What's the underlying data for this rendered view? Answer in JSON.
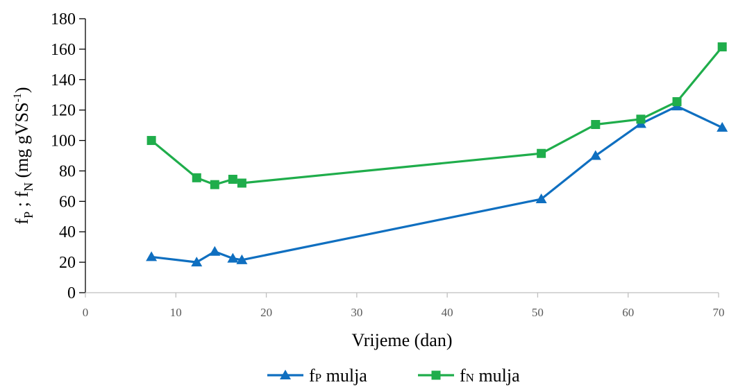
{
  "chart_data": {
    "type": "line",
    "title": "",
    "xlabel": "Vrijeme (dan)",
    "ylabel": {
      "parts": [
        "f",
        "P",
        " ; f",
        "N",
        " (mg gVSS",
        "-1",
        ")"
      ]
    },
    "xlim": [
      0,
      70
    ],
    "ylim": [
      0,
      180
    ],
    "x_ticks": [
      0,
      10,
      20,
      30,
      40,
      50,
      60,
      70
    ],
    "y_ticks": [
      0,
      20,
      40,
      60,
      80,
      100,
      120,
      140,
      160,
      180
    ],
    "grid": false,
    "legend_position": "bottom",
    "series": [
      {
        "name": "fP mulja",
        "legend_parts": [
          "f",
          "P",
          " mulja"
        ],
        "color": "#0f6fc0",
        "marker": "triangle",
        "x": [
          7.3,
          12.3,
          14.3,
          16.3,
          17.3,
          50.4,
          56.4,
          61.4,
          65.4,
          70.4
        ],
        "y": [
          23.5,
          20,
          27,
          22.5,
          21.5,
          61.5,
          90,
          111,
          122.5,
          108.5
        ]
      },
      {
        "name": "fN mulja",
        "legend_parts": [
          "f",
          "N",
          " mulja"
        ],
        "color": "#1fad4b",
        "marker": "square",
        "x": [
          7.3,
          12.3,
          14.3,
          16.3,
          17.3,
          50.4,
          56.4,
          61.4,
          65.4,
          70.4
        ],
        "y": [
          100,
          75.5,
          71,
          74.5,
          72,
          91.5,
          110.5,
          114,
          125.5,
          161.5
        ]
      }
    ]
  }
}
